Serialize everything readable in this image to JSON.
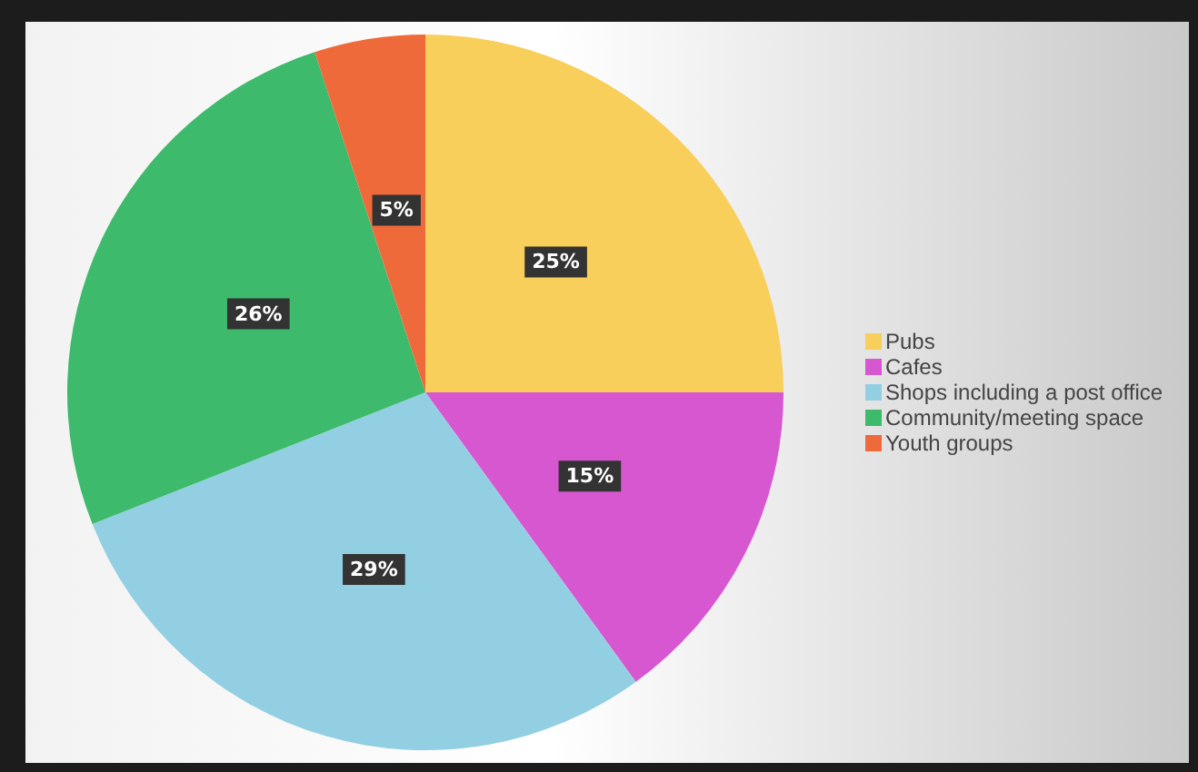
{
  "chart_data": {
    "type": "pie",
    "categories": [
      "Pubs",
      "Cafes",
      "Shops including a post office",
      "Community/meeting space",
      "Youth groups"
    ],
    "values": [
      25,
      15,
      29,
      26,
      5
    ],
    "value_labels": [
      "25%",
      "15%",
      "29%",
      "26%",
      "5%"
    ],
    "colors": [
      "#f9cf5b",
      "#d657d0",
      "#93cfe2",
      "#3dba6c",
      "#ef6a3b"
    ],
    "legend": "right"
  }
}
